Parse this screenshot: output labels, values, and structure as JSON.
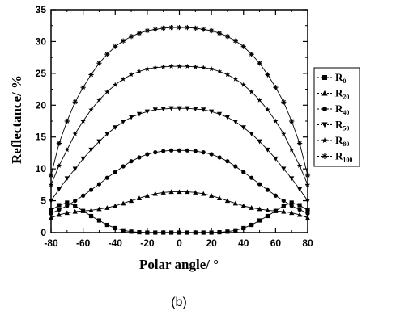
{
  "chart_data": {
    "type": "line",
    "xlabel": "Polar angle/ °",
    "ylabel": "Reflectance/ %",
    "xlim": [
      -80,
      80
    ],
    "ylim": [
      0,
      35
    ],
    "xticks": [
      -80,
      -60,
      -40,
      -20,
      0,
      20,
      40,
      60,
      80
    ],
    "yticks": [
      0,
      5,
      10,
      15,
      20,
      25,
      30,
      35
    ],
    "x": [
      -80,
      -75,
      -70,
      -65,
      -60,
      -55,
      -50,
      -45,
      -40,
      -35,
      -30,
      -25,
      -20,
      -15,
      -10,
      -5,
      0,
      5,
      10,
      15,
      20,
      25,
      30,
      35,
      40,
      45,
      50,
      55,
      60,
      65,
      70,
      75,
      80
    ],
    "legend_position": "right",
    "series": [
      {
        "name": "R",
        "sub": "0",
        "marker": "square",
        "values": [
          3.5,
          4.3,
          4.7,
          4.2,
          3.4,
          2.6,
          1.9,
          1.2,
          0.7,
          0.35,
          0.15,
          0.05,
          0.0,
          0.0,
          0.0,
          0.0,
          0.0,
          0.0,
          0.0,
          0.0,
          0.0,
          0.05,
          0.15,
          0.35,
          0.7,
          1.2,
          1.9,
          2.6,
          3.4,
          4.2,
          4.7,
          4.3,
          3.5
        ]
      },
      {
        "name": "R",
        "sub": "20",
        "marker": "triangle-up",
        "values": [
          2.3,
          2.8,
          3.1,
          3.3,
          3.4,
          3.5,
          3.7,
          3.9,
          4.2,
          4.6,
          5.0,
          5.4,
          5.8,
          6.1,
          6.3,
          6.4,
          6.4,
          6.4,
          6.3,
          6.1,
          5.8,
          5.4,
          5.0,
          4.6,
          4.2,
          3.9,
          3.7,
          3.5,
          3.4,
          3.3,
          3.1,
          2.8,
          2.3
        ]
      },
      {
        "name": "R",
        "sub": "40",
        "marker": "circle",
        "values": [
          3.0,
          3.6,
          4.2,
          5.0,
          5.8,
          6.7,
          7.6,
          8.6,
          9.5,
          10.4,
          11.2,
          11.8,
          12.3,
          12.6,
          12.8,
          12.9,
          12.9,
          12.9,
          12.8,
          12.6,
          12.3,
          11.8,
          11.2,
          10.4,
          9.5,
          8.6,
          7.6,
          6.7,
          5.8,
          5.0,
          4.2,
          3.6,
          3.0
        ]
      },
      {
        "name": "R",
        "sub": "50",
        "marker": "triangle-down",
        "values": [
          5.0,
          6.8,
          8.5,
          10.0,
          11.6,
          13.0,
          14.3,
          15.5,
          16.5,
          17.4,
          18.1,
          18.6,
          19.0,
          19.3,
          19.4,
          19.5,
          19.5,
          19.5,
          19.4,
          19.3,
          19.0,
          18.6,
          18.1,
          17.4,
          16.5,
          15.5,
          14.3,
          13.0,
          11.6,
          10.0,
          8.5,
          6.8,
          5.0
        ]
      },
      {
        "name": "R",
        "sub": "80",
        "marker": "star",
        "values": [
          7.5,
          10.5,
          13.0,
          15.5,
          17.5,
          19.3,
          20.8,
          22.1,
          23.2,
          24.1,
          24.8,
          25.3,
          25.7,
          25.9,
          26.0,
          26.1,
          26.1,
          26.1,
          26.0,
          25.9,
          25.7,
          25.3,
          24.8,
          24.1,
          23.2,
          22.1,
          20.8,
          19.3,
          17.5,
          15.5,
          13.0,
          10.5,
          7.5
        ]
      },
      {
        "name": "R",
        "sub": "100",
        "marker": "asterisk",
        "values": [
          9.0,
          14.0,
          17.5,
          20.5,
          22.8,
          24.8,
          26.6,
          28.0,
          29.2,
          30.1,
          30.8,
          31.3,
          31.7,
          31.9,
          32.1,
          32.2,
          32.2,
          32.2,
          32.1,
          31.9,
          31.7,
          31.3,
          30.8,
          30.1,
          29.2,
          28.0,
          26.6,
          24.8,
          22.8,
          20.5,
          17.5,
          14.0,
          9.0
        ]
      }
    ],
    "caption": "(b)"
  }
}
